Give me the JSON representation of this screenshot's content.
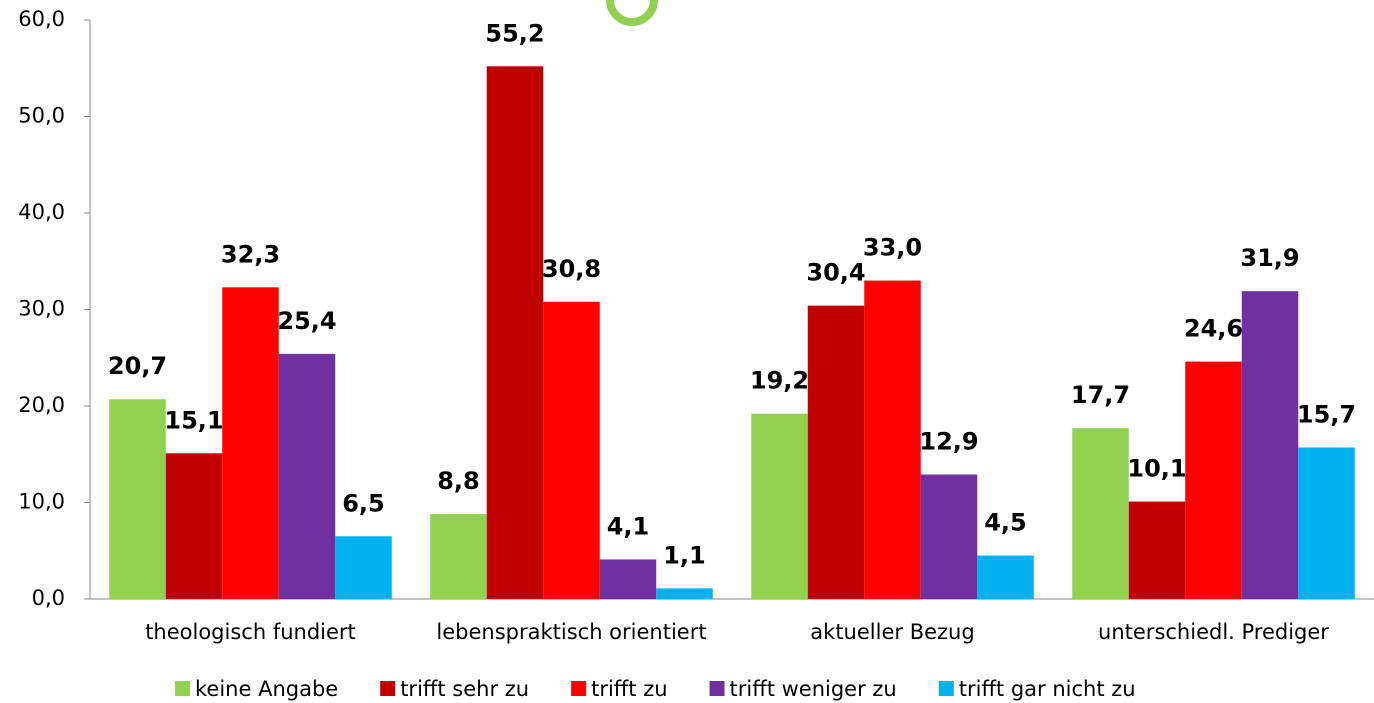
{
  "chart_data": {
    "type": "bar",
    "categories": [
      "theologisch fundiert",
      "lebenspraktisch orientiert",
      "aktueller Bezug",
      "unterschiedl. Prediger"
    ],
    "series": [
      {
        "name": "keine Angabe",
        "color": "#92d050",
        "values": [
          20.7,
          8.8,
          19.2,
          17.7
        ],
        "value_labels": [
          "20,7",
          "8,8",
          "19,2",
          "17,7"
        ]
      },
      {
        "name": "trifft sehr zu",
        "color": "#c00000",
        "values": [
          15.1,
          55.2,
          30.4,
          10.1
        ],
        "value_labels": [
          "15,1",
          "55,2",
          "30,4",
          "10,1"
        ]
      },
      {
        "name": "trifft zu",
        "color": "#ff0000",
        "values": [
          32.3,
          30.8,
          33.0,
          24.6
        ],
        "value_labels": [
          "32,3",
          "30,8",
          "33,0",
          "24,6"
        ]
      },
      {
        "name": "trifft weniger zu",
        "color": "#7030a0",
        "values": [
          25.4,
          4.1,
          12.9,
          31.9
        ],
        "value_labels": [
          "25,4",
          "4,1",
          "12,9",
          "31,9"
        ]
      },
      {
        "name": "trifft gar nicht zu",
        "color": "#00b0f0",
        "values": [
          6.5,
          1.1,
          4.5,
          15.7
        ],
        "value_labels": [
          "6,5",
          "1,1",
          "4,5",
          "15,7"
        ]
      }
    ],
    "ylim": [
      0,
      60
    ],
    "yticks": [
      {
        "value": 0,
        "label": "0,0"
      },
      {
        "value": 10,
        "label": "10,0"
      },
      {
        "value": 20,
        "label": "20,0"
      },
      {
        "value": 30,
        "label": "30,0"
      },
      {
        "value": 40,
        "label": "40,0"
      },
      {
        "value": 50,
        "label": "50,0"
      },
      {
        "value": 60,
        "label": "60,0"
      }
    ],
    "legend": "bottom"
  }
}
